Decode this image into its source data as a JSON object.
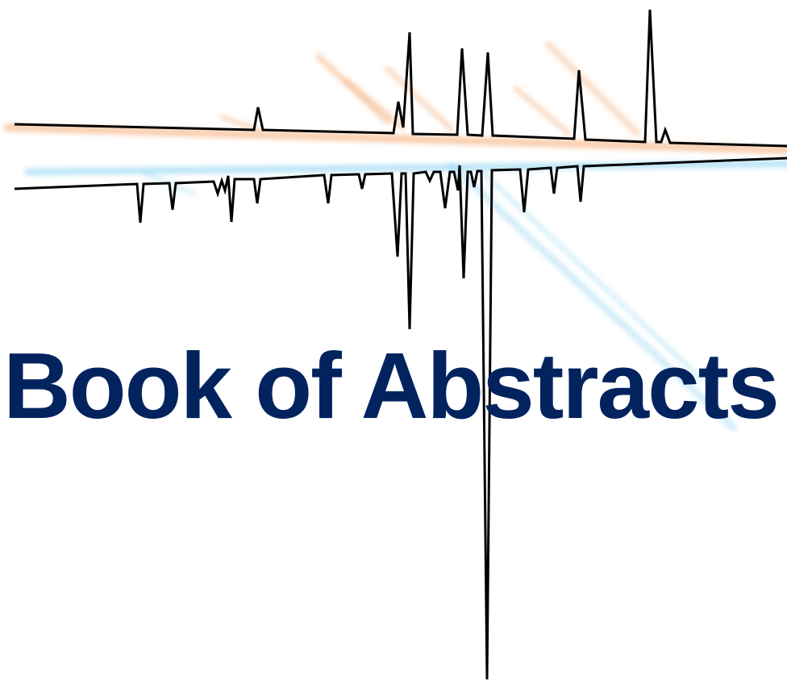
{
  "cover": {
    "title": "Book of Abstracts",
    "title_color": "#03235f",
    "line_color": "#000000",
    "upper_glow_color": "#f4a870",
    "lower_glow_color": "#7fcdf0"
  }
}
